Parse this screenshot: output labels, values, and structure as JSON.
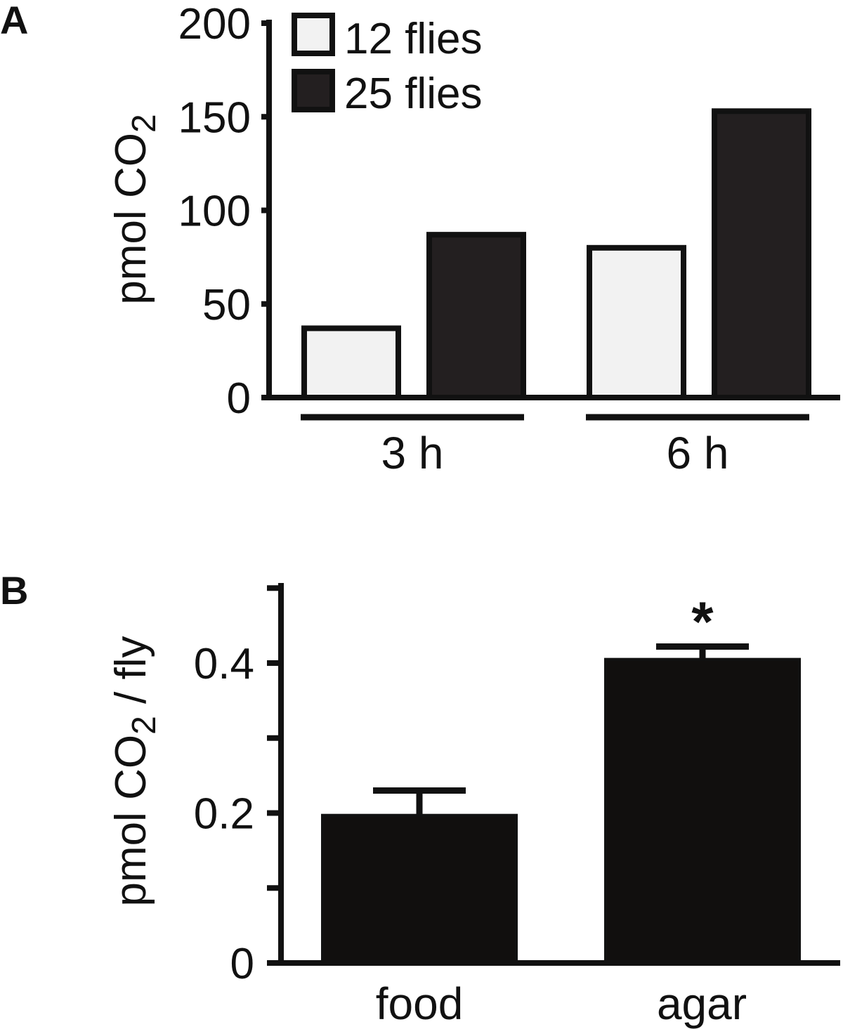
{
  "chart_data": [
    {
      "type": "bar",
      "panel": "A",
      "ylabel": "pmol CO",
      "ylabel_subscript": "2",
      "ylim": [
        0,
        200
      ],
      "yticks": [
        "0",
        "50",
        "100",
        "150",
        "200"
      ],
      "categories": [
        "3 h",
        "6 h"
      ],
      "series": [
        {
          "name": "12 flies",
          "values": [
            37,
            80
          ],
          "color": "#f2f2f2"
        },
        {
          "name": "25 flies",
          "values": [
            87,
            153
          ],
          "color": "#231f20"
        }
      ],
      "legend_position": "top-left",
      "grid": false
    },
    {
      "type": "bar",
      "panel": "B",
      "ylabel": "pmol CO",
      "ylabel_subscript": "2",
      "ylabel_suffix": " / fly",
      "ylim": [
        0,
        0.5
      ],
      "yticks": [
        "0",
        "0.2",
        "0.4"
      ],
      "categories": [
        "food",
        "agar"
      ],
      "values": [
        0.197,
        0.405
      ],
      "errors": [
        0.033,
        0.017
      ],
      "color": "#110f0e",
      "annotations": [
        "",
        "*"
      ],
      "grid": false
    }
  ]
}
